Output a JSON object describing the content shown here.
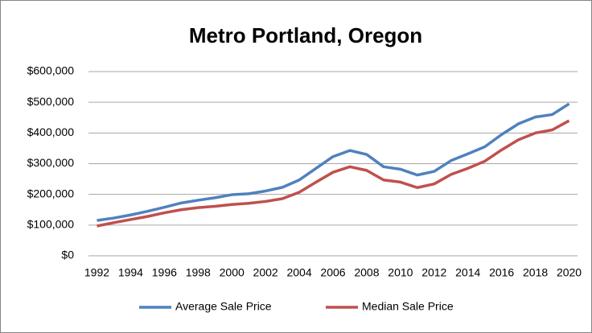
{
  "chart_data": {
    "type": "line",
    "title": "Metro Portland, Oregon",
    "categories": [
      "1992",
      null,
      "1994",
      null,
      "1996",
      null,
      "1998",
      null,
      "2000",
      null,
      "2002",
      null,
      "2004",
      null,
      "2006",
      null,
      "2008",
      null,
      "2010",
      null,
      "2012",
      null,
      "2014",
      null,
      "2016",
      null,
      "2018",
      null,
      "2020"
    ],
    "series": [
      {
        "name": "Average Sale Price",
        "color": "#4f81bd",
        "values": [
          115000,
          123000,
          133000,
          145000,
          158000,
          172000,
          181000,
          189000,
          199000,
          202000,
          211000,
          223000,
          247000,
          285000,
          323000,
          343000,
          330000,
          290000,
          282000,
          263000,
          275000,
          310000,
          332000,
          355000,
          395000,
          430000,
          452000,
          460000,
          495000
        ]
      },
      {
        "name": "Median Sale Price",
        "color": "#c0504d",
        "values": [
          97000,
          108000,
          118000,
          128000,
          140000,
          150000,
          157000,
          161000,
          167000,
          171000,
          177000,
          186000,
          207000,
          240000,
          272000,
          290000,
          278000,
          247000,
          240000,
          222000,
          234000,
          265000,
          285000,
          308000,
          345000,
          378000,
          400000,
          410000,
          440000
        ]
      }
    ],
    "ylim": [
      0,
      600000
    ],
    "yticks": [
      {
        "value": 0,
        "label": "$0"
      },
      {
        "value": 100000,
        "label": "$100,000"
      },
      {
        "value": 200000,
        "label": "$200,000"
      },
      {
        "value": 300000,
        "label": "$300,000"
      },
      {
        "value": 400000,
        "label": "$400,000"
      },
      {
        "value": 500000,
        "label": "$500,000"
      },
      {
        "value": 600000,
        "label": "$600,000"
      }
    ],
    "grid": true,
    "legend": "bottom"
  }
}
